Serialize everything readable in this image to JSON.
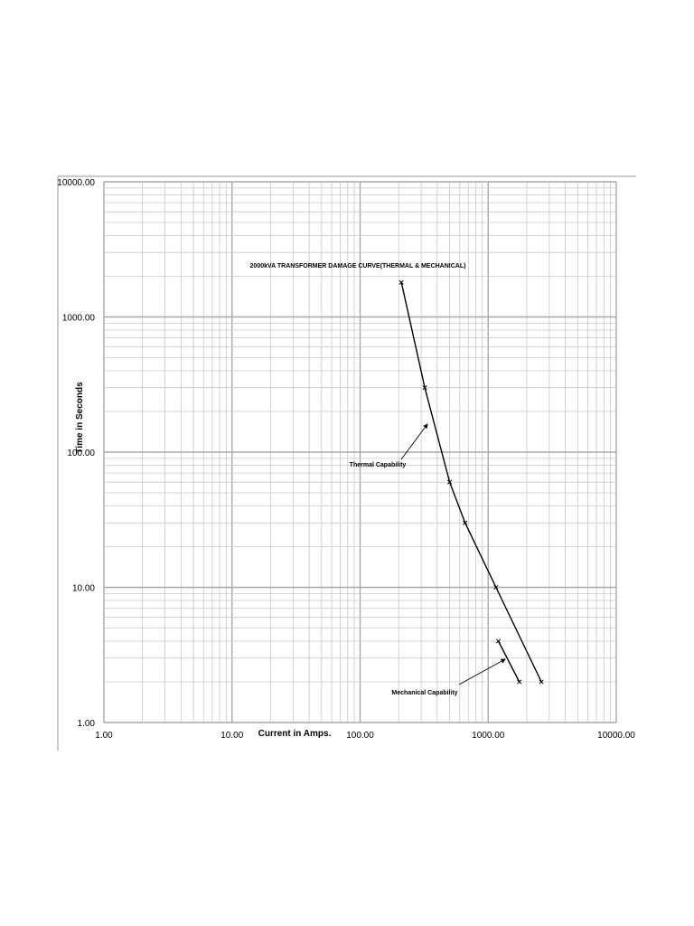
{
  "chart_data": {
    "type": "line",
    "title": "2000kVA TRANSFORMER DAMAGE CURVE(THERMAL & MECHANICAL)",
    "xlabel": "Current in Amps.",
    "ylabel": "Time in Seconds",
    "xscale": "log",
    "yscale": "log",
    "xlim": [
      1,
      10000
    ],
    "ylim": [
      1,
      10000
    ],
    "grid": true,
    "x_ticks": [
      "1.00",
      "10.00",
      "100.00",
      "1000.00",
      "10000.00"
    ],
    "y_ticks": [
      "1.00",
      "10.00",
      "100.00",
      "1000.00",
      "10000.00"
    ],
    "series": [
      {
        "values": [
          {
            "x": 210,
            "y": 1800
          },
          {
            "x": 320,
            "y": 300
          },
          {
            "x": 500,
            "y": 60
          },
          {
            "x": 660,
            "y": 30
          },
          {
            "x": 1150,
            "y": 10
          },
          {
            "x": 2600,
            "y": 2
          }
        ]
      },
      {
        "values": [
          {
            "x": 1200,
            "y": 4
          },
          {
            "x": 1750,
            "y": 2
          }
        ]
      }
    ],
    "annotations": [
      {
        "text": "Thermal Capability"
      },
      {
        "text": "Mechanical Capability"
      }
    ]
  }
}
